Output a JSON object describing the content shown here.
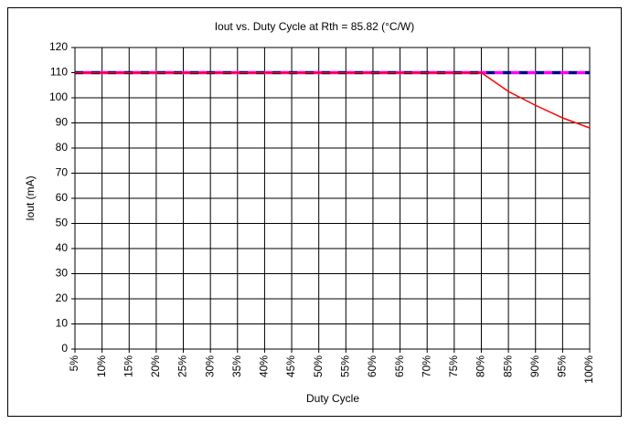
{
  "chart_data": {
    "type": "line",
    "title": "Iout vs. Duty Cycle at Rth = 85.82 (°C/W)",
    "x_label": "Duty Cycle",
    "y_label": "Iout (mA)",
    "categories": [
      "5%",
      "10%",
      "15%",
      "20%",
      "25%",
      "30%",
      "35%",
      "40%",
      "45%",
      "50%",
      "55%",
      "60%",
      "65%",
      "70%",
      "75%",
      "80%",
      "85%",
      "90%",
      "95%",
      "100%"
    ],
    "series": [
      {
        "color": "#000000",
        "dash": false,
        "values": [
          110,
          110,
          110,
          110,
          110,
          110,
          110,
          110,
          110,
          110,
          110,
          110,
          110,
          110,
          110,
          110,
          110,
          110,
          110,
          110
        ]
      },
      {
        "color": "#000080",
        "dash": true,
        "values": [
          110,
          110,
          110,
          110,
          110,
          110,
          110,
          110,
          110,
          110,
          110,
          110,
          110,
          110,
          110,
          110,
          110,
          110,
          110,
          110
        ]
      },
      {
        "color": "#ff00ff",
        "dash": true,
        "values": [
          110,
          110,
          110,
          110,
          110,
          110,
          110,
          110,
          110,
          110,
          110,
          110,
          110,
          110,
          110,
          110,
          110,
          110,
          110,
          110
        ]
      },
      {
        "color": "#ff0000",
        "dash": false,
        "values": [
          110,
          110,
          110,
          110,
          110,
          110,
          110,
          110,
          110,
          110,
          110,
          110,
          110,
          110,
          110,
          110,
          102.5,
          97,
          92,
          88
        ]
      }
    ],
    "ylim": [
      0,
      120
    ],
    "yticks": [
      0,
      10,
      20,
      30,
      40,
      50,
      60,
      70,
      80,
      90,
      100,
      110,
      120
    ],
    "grid": true
  }
}
